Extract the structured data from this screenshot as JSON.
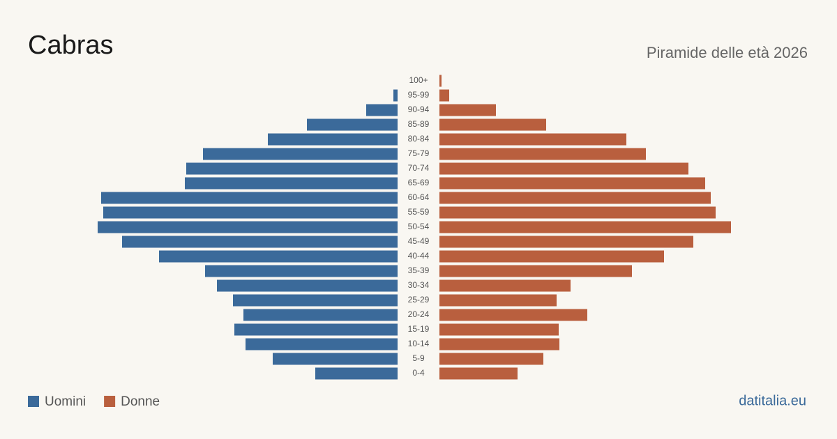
{
  "chart_data": {
    "type": "pyramid",
    "title": "Cabras",
    "subtitle": "Piramide delle età 2026",
    "source": "datitalia.eu",
    "categories": [
      "100+",
      "95-99",
      "90-94",
      "85-89",
      "80-84",
      "75-79",
      "70-74",
      "65-69",
      "60-64",
      "55-59",
      "50-54",
      "45-49",
      "40-44",
      "35-39",
      "30-34",
      "25-29",
      "20-24",
      "15-19",
      "10-14",
      "5-9",
      "0-4"
    ],
    "xlim": [
      0,
      440
    ],
    "series": [
      {
        "name": "Uomini",
        "color": "#3b6a9a",
        "values": [
          0,
          6,
          45,
          130,
          186,
          279,
          303,
          305,
          425,
          422,
          430,
          395,
          342,
          276,
          259,
          236,
          221,
          234,
          218,
          179,
          118
        ]
      },
      {
        "name": "Donne",
        "color": "#b95f3e",
        "values": [
          3,
          14,
          81,
          153,
          268,
          296,
          357,
          381,
          389,
          396,
          418,
          364,
          322,
          276,
          188,
          168,
          212,
          171,
          172,
          149,
          112
        ]
      }
    ]
  }
}
